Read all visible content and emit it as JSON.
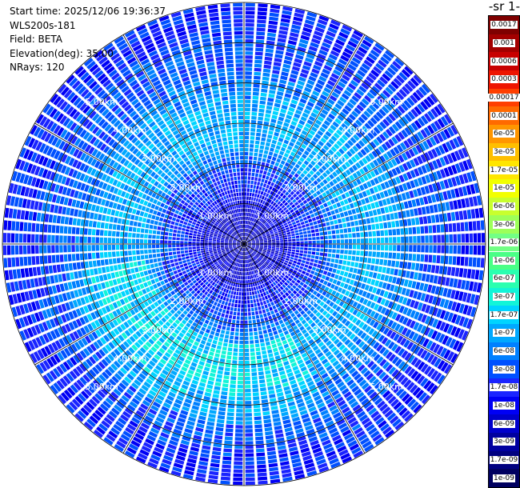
{
  "header": {
    "start_time": "Start time: 2025/12/06 19:36:37",
    "instrument": "WLS200s-181",
    "field": "Field: BETA",
    "elevation": "Elevation(deg): 35.00",
    "nrays": "NRays: 120"
  },
  "colorbar": {
    "units_fragment": "-1 sr-",
    "labels": [
      "0.0017",
      "0.001",
      "0.0006",
      "0.0003",
      "0.00017",
      "0.0001",
      "6e-05",
      "3e-05",
      "1.7e-05",
      "1e-05",
      "6e-06",
      "3e-06",
      "1.7e-06",
      "1e-06",
      "6e-07",
      "3e-07",
      "1.7e-07",
      "1e-07",
      "6e-08",
      "3e-08",
      "1.7e-08",
      "1e-08",
      "6e-09",
      "3e-09",
      "1.7e-09",
      "1e-09"
    ],
    "colors": [
      "#7f0000",
      "#a30000",
      "#c80000",
      "#ee1500",
      "#ff3f00",
      "#ff6a00",
      "#ff9600",
      "#ffbf00",
      "#ffe600",
      "#f2ff00",
      "#c8ff2e",
      "#9dff59",
      "#72ff85",
      "#4aff86",
      "#2affb0",
      "#12f5d8",
      "#00d4ff",
      "#00a8ff",
      "#0080ff",
      "#0050ff",
      "#1a24ff",
      "#0000f5",
      "#0000cc",
      "#0000a0",
      "#000080",
      "#000060"
    ]
  },
  "chart_data": {
    "type": "ppi_polar",
    "field": "BETA",
    "nrays": 120,
    "elevation_deg": 35.0,
    "max_range_km": 6.0,
    "range_rings_km": [
      1,
      2,
      3,
      4,
      5,
      6
    ],
    "range_ring_labels": [
      "1.00km",
      "2.00km",
      "3.00km",
      "4.00km",
      "5.00km"
    ],
    "label_azimuths_deg": [
      315,
      45,
      225,
      135
    ],
    "spoke_step_deg": 30,
    "radial_profile": {
      "range_km": [
        0.0,
        0.5,
        1.0,
        1.5,
        2.0,
        2.5,
        3.0,
        3.5,
        4.0,
        4.5,
        5.0,
        5.5,
        6.0
      ],
      "color_index": [
        22,
        22,
        21,
        20,
        19,
        17,
        17,
        17,
        18,
        19,
        19,
        20,
        20
      ]
    }
  }
}
